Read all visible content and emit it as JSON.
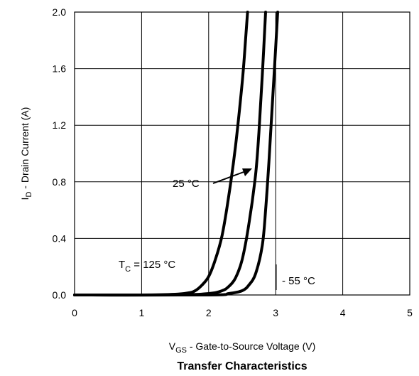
{
  "chart_data": {
    "type": "line",
    "title": "Transfer Characteristics",
    "xlabel": {
      "main": "V",
      "sub": "GS",
      "rest": " - Gate-to-Source Voltage (V)"
    },
    "ylabel": {
      "main": "I",
      "sub": "D",
      "rest": " - Drain Current (A)"
    },
    "xlim": [
      0,
      5
    ],
    "ylim": [
      0,
      2.0
    ],
    "x_ticks": [
      "0",
      "1",
      "2",
      "3",
      "4",
      "5"
    ],
    "y_ticks": [
      "0.0",
      "0.4",
      "0.8",
      "1.2",
      "1.6",
      "2.0"
    ],
    "grid": true,
    "series": [
      {
        "name": "T_C = 125 °C",
        "x": [
          0,
          1.0,
          1.5,
          1.7,
          1.8,
          1.9,
          2.0,
          2.1,
          2.2,
          2.3,
          2.4,
          2.5,
          2.55,
          2.58
        ],
        "y": [
          0,
          0.0,
          0.005,
          0.015,
          0.03,
          0.07,
          0.13,
          0.25,
          0.42,
          0.7,
          1.05,
          1.5,
          1.8,
          2.0
        ]
      },
      {
        "name": "25 °C",
        "x": [
          0,
          1.5,
          2.0,
          2.2,
          2.3,
          2.4,
          2.5,
          2.6,
          2.7,
          2.75,
          2.8,
          2.85
        ],
        "y": [
          0,
          0.0,
          0.01,
          0.03,
          0.06,
          0.12,
          0.25,
          0.5,
          0.85,
          1.15,
          1.55,
          2.0
        ]
      },
      {
        "name": "- 55 °C",
        "x": [
          0,
          2.0,
          2.3,
          2.5,
          2.6,
          2.7,
          2.8,
          2.85,
          2.9,
          2.95,
          3.0,
          3.03
        ],
        "y": [
          0,
          0.0,
          0.01,
          0.03,
          0.07,
          0.15,
          0.35,
          0.6,
          0.95,
          1.35,
          1.75,
          2.0
        ]
      }
    ],
    "annotations": {
      "t125": {
        "main": "T",
        "sub": "C",
        "rest": " = 125  °C"
      },
      "t25": "25  °C",
      "tm55": "- 55  °C"
    }
  }
}
